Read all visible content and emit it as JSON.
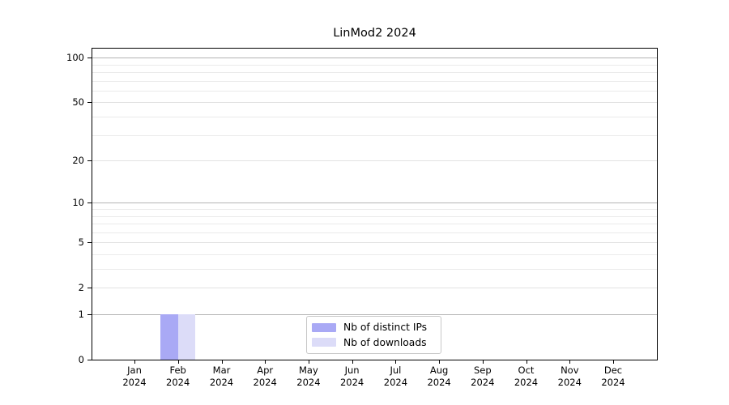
{
  "title": "LinMod2 2024",
  "chart_data": {
    "type": "bar",
    "title": "LinMod2 2024",
    "x_months": [
      "Jan",
      "Feb",
      "Mar",
      "Apr",
      "May",
      "Jun",
      "Jul",
      "Aug",
      "Sep",
      "Oct",
      "Nov",
      "Dec"
    ],
    "x_year": "2024",
    "y_scale": "log1p",
    "ylim": [
      0,
      115
    ],
    "y_major_ticks": [
      0,
      1,
      2,
      5,
      10,
      20,
      50,
      100
    ],
    "y_minor_gridlines": [
      3,
      4,
      6,
      7,
      8,
      9,
      30,
      40,
      60,
      70,
      80,
      90
    ],
    "grid": true,
    "legend_position": "bottom-center-inside",
    "series": [
      {
        "name": "Nb of distinct IPs",
        "color": "#a9a9f5",
        "values": [
          0,
          1,
          0,
          0,
          0,
          0,
          0,
          0,
          0,
          0,
          0,
          0
        ]
      },
      {
        "name": "Nb of downloads",
        "color": "#dcdcf8",
        "values": [
          0,
          1,
          0,
          0,
          0,
          0,
          0,
          0,
          0,
          0,
          0,
          0
        ]
      }
    ],
    "colors": {
      "decade_gridline": "#b4b4b4",
      "major_gridline": "#e2e2e2",
      "minor_gridline": "#ebebeb",
      "axis": "#000000",
      "legend_border": "#c8c8c8",
      "background": "#ffffff"
    }
  }
}
